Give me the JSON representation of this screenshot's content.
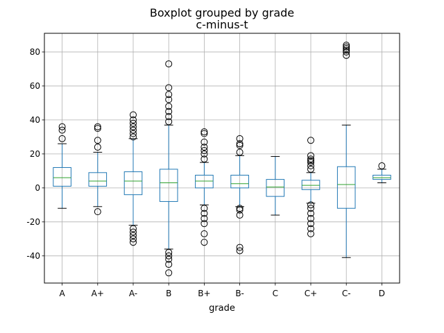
{
  "chart_data": {
    "type": "boxplot",
    "suptitle": "Boxplot grouped by grade",
    "title": "c-minus-t",
    "xlabel": "grade",
    "ylabel": "",
    "categories": [
      "A",
      "A+",
      "A-",
      "B",
      "B+",
      "B-",
      "C",
      "C+",
      "C-",
      "D"
    ],
    "ylim": [
      -56,
      91
    ],
    "yticks": [
      -40,
      -20,
      0,
      20,
      40,
      60,
      80
    ],
    "grid": true,
    "colors": {
      "box": "#1f77b4",
      "median": "#2ca02c",
      "whisker": "#1f77b4",
      "outlier": "#000000",
      "grid": "#b0b0b0"
    },
    "boxes": [
      {
        "category": "A",
        "whislo": -12,
        "q1": 1,
        "med": 6,
        "q3": 12,
        "whishi": 26,
        "fliers": [
          29,
          34,
          36
        ]
      },
      {
        "category": "A+",
        "whislo": -11,
        "q1": 1,
        "med": 4,
        "q3": 9,
        "whishi": 21,
        "fliers": [
          -14,
          24,
          28,
          35,
          36
        ]
      },
      {
        "category": "A-",
        "whislo": -22,
        "q1": -4,
        "med": 4,
        "q3": 9.5,
        "whishi": 29,
        "fliers": [
          -32,
          -30,
          -28,
          -26,
          -24,
          30,
          32,
          34,
          36,
          38,
          40,
          43
        ]
      },
      {
        "category": "B",
        "whislo": -36,
        "q1": -8,
        "med": 3,
        "q3": 11,
        "whishi": 37,
        "fliers": [
          -50,
          -45,
          -42,
          -40,
          -38,
          39,
          42,
          45,
          48,
          52,
          55,
          59,
          73
        ]
      },
      {
        "category": "B+",
        "whislo": -10,
        "q1": 0,
        "med": 4,
        "q3": 7.5,
        "whishi": 15,
        "fliers": [
          -32,
          -27,
          -21,
          -18,
          -15,
          -12,
          17,
          20,
          22,
          24,
          27,
          32,
          33
        ]
      },
      {
        "category": "B-",
        "whislo": -11,
        "q1": 0,
        "med": 2.5,
        "q3": 7.5,
        "whishi": 19,
        "fliers": [
          -37,
          -35,
          -16,
          -13,
          -12,
          21,
          25,
          26,
          29
        ]
      },
      {
        "category": "C",
        "whislo": -16,
        "q1": -5,
        "med": 0.5,
        "q3": 5,
        "whishi": 18.5,
        "fliers": []
      },
      {
        "category": "C+",
        "whislo": -9,
        "q1": -1,
        "med": 1.5,
        "q3": 4.5,
        "whishi": 9,
        "fliers": [
          -27,
          -24,
          -21,
          -18,
          -15,
          -12,
          -10,
          11,
          13,
          15,
          16,
          17,
          19,
          28
        ]
      },
      {
        "category": "C-",
        "whislo": -41,
        "q1": -12,
        "med": 2,
        "q3": 12.5,
        "whishi": 37,
        "fliers": [
          78,
          80,
          81,
          82,
          83,
          84
        ]
      },
      {
        "category": "D",
        "whislo": 3,
        "q1": 5,
        "med": 6,
        "q3": 7.5,
        "whishi": 11,
        "fliers": [
          13
        ]
      }
    ]
  }
}
